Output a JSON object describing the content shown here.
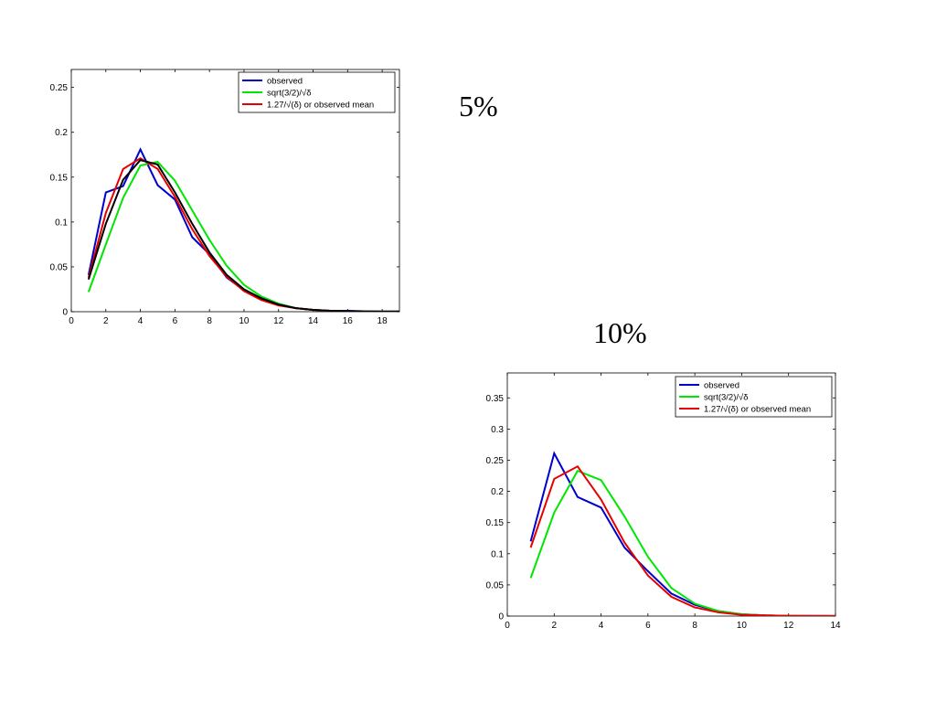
{
  "slide": {
    "label_5": "5%",
    "label_10": "10%"
  },
  "colors": {
    "observed": "#0000cc",
    "sqrt": "#00e600",
    "formula": "#e60000",
    "extra": "#000000"
  },
  "chart_data": [
    {
      "type": "line",
      "title": "",
      "xlabel": "",
      "ylabel": "",
      "xlim": [
        0,
        19
      ],
      "ylim": [
        0,
        0.27
      ],
      "xticks": [
        0,
        2,
        4,
        6,
        8,
        10,
        12,
        14,
        16,
        18
      ],
      "yticks": [
        0,
        0.05,
        0.1,
        0.15,
        0.2,
        0.25
      ],
      "ytick_labels": [
        "0",
        "0.05",
        "0.1",
        "0.15",
        "0.2",
        "0.25"
      ],
      "legend": {
        "placement": "top-right",
        "entries": [
          "observed",
          "sqrt(3/2)/√δ",
          "1.27/√(δ) or observed mean"
        ]
      },
      "series": [
        {
          "name": "observed",
          "color_key": "observed",
          "x": [
            1,
            2,
            3,
            4,
            5,
            6,
            7,
            8,
            9,
            10,
            11,
            12,
            13,
            14,
            15,
            16,
            17,
            18,
            19
          ],
          "values": [
            0.041,
            0.133,
            0.14,
            0.181,
            0.141,
            0.125,
            0.083,
            0.064,
            0.038,
            0.024,
            0.014,
            0.008,
            0.004,
            0.002,
            0.001,
            0.001,
            0.0005,
            0.0003,
            0.0002
          ]
        },
        {
          "name": "sqrt(3/2)/√δ",
          "color_key": "sqrt",
          "x": [
            1,
            2,
            3,
            4,
            5,
            6,
            7,
            8,
            9,
            10,
            11,
            12,
            13,
            14,
            15,
            16,
            17,
            18,
            19
          ],
          "values": [
            0.022,
            0.075,
            0.127,
            0.163,
            0.167,
            0.146,
            0.113,
            0.08,
            0.051,
            0.03,
            0.017,
            0.009,
            0.004,
            0.002,
            0.001,
            0.0005,
            0.0002,
            0.0001,
            0.0001
          ]
        },
        {
          "name": "1.27/√(δ) or observed mean",
          "color_key": "formula",
          "x": [
            1,
            2,
            3,
            4,
            5,
            6,
            7,
            8,
            9,
            10,
            11,
            12,
            13,
            14,
            15,
            16,
            17,
            18,
            19
          ],
          "values": [
            0.038,
            0.11,
            0.159,
            0.171,
            0.159,
            0.128,
            0.092,
            0.062,
            0.039,
            0.023,
            0.013,
            0.007,
            0.004,
            0.002,
            0.001,
            0.0005,
            0.0002,
            0.0001,
            0.0001
          ]
        },
        {
          "color_key": "extra",
          "x": [
            1,
            2,
            3,
            4,
            5,
            6,
            7,
            8,
            9,
            10,
            11,
            12,
            13,
            14,
            15,
            16,
            17,
            18,
            19
          ],
          "values": [
            0.036,
            0.098,
            0.147,
            0.169,
            0.164,
            0.133,
            0.098,
            0.066,
            0.041,
            0.025,
            0.015,
            0.008,
            0.004,
            0.002,
            0.001,
            0.0005,
            0.0002,
            0.0001,
            0.0001
          ]
        }
      ]
    },
    {
      "type": "line",
      "title": "",
      "xlabel": "",
      "ylabel": "",
      "xlim": [
        0,
        14
      ],
      "ylim": [
        0,
        0.39
      ],
      "xticks": [
        0,
        2,
        4,
        6,
        8,
        10,
        12,
        14
      ],
      "yticks": [
        0,
        0.05,
        0.1,
        0.15,
        0.2,
        0.25,
        0.3,
        0.35
      ],
      "ytick_labels": [
        "0",
        "0.05",
        "0.1",
        "0.15",
        "0.2",
        "0.25",
        "0.3",
        "0.35"
      ],
      "legend": {
        "placement": "top-right",
        "entries": [
          "observed",
          "sqrt(3/2)/√δ",
          "1.27/√(δ) or observed mean"
        ]
      },
      "series": [
        {
          "name": "observed",
          "color_key": "observed",
          "x": [
            1,
            2,
            3,
            4,
            5,
            6,
            7,
            8,
            9,
            10,
            11,
            12,
            13,
            14
          ],
          "values": [
            0.12,
            0.261,
            0.191,
            0.174,
            0.11,
            0.072,
            0.036,
            0.018,
            0.008,
            0.003,
            0.001,
            0.0005,
            0.0003,
            0.0002
          ]
        },
        {
          "name": "sqrt(3/2)/√δ",
          "color_key": "sqrt",
          "x": [
            1,
            2,
            3,
            4,
            5,
            6,
            7,
            8,
            9,
            10,
            11,
            12,
            13,
            14
          ],
          "values": [
            0.061,
            0.166,
            0.233,
            0.218,
            0.16,
            0.095,
            0.045,
            0.02,
            0.008,
            0.003,
            0.001,
            0.0005,
            0.0002,
            0.0001
          ]
        },
        {
          "name": "1.27/√(δ) or observed mean",
          "color_key": "formula",
          "x": [
            1,
            2,
            3,
            4,
            5,
            6,
            7,
            8,
            9,
            10,
            11,
            12,
            13,
            14
          ],
          "values": [
            0.11,
            0.22,
            0.24,
            0.187,
            0.118,
            0.065,
            0.031,
            0.014,
            0.006,
            0.002,
            0.001,
            0.0004,
            0.0002,
            0.0001
          ]
        }
      ]
    }
  ]
}
